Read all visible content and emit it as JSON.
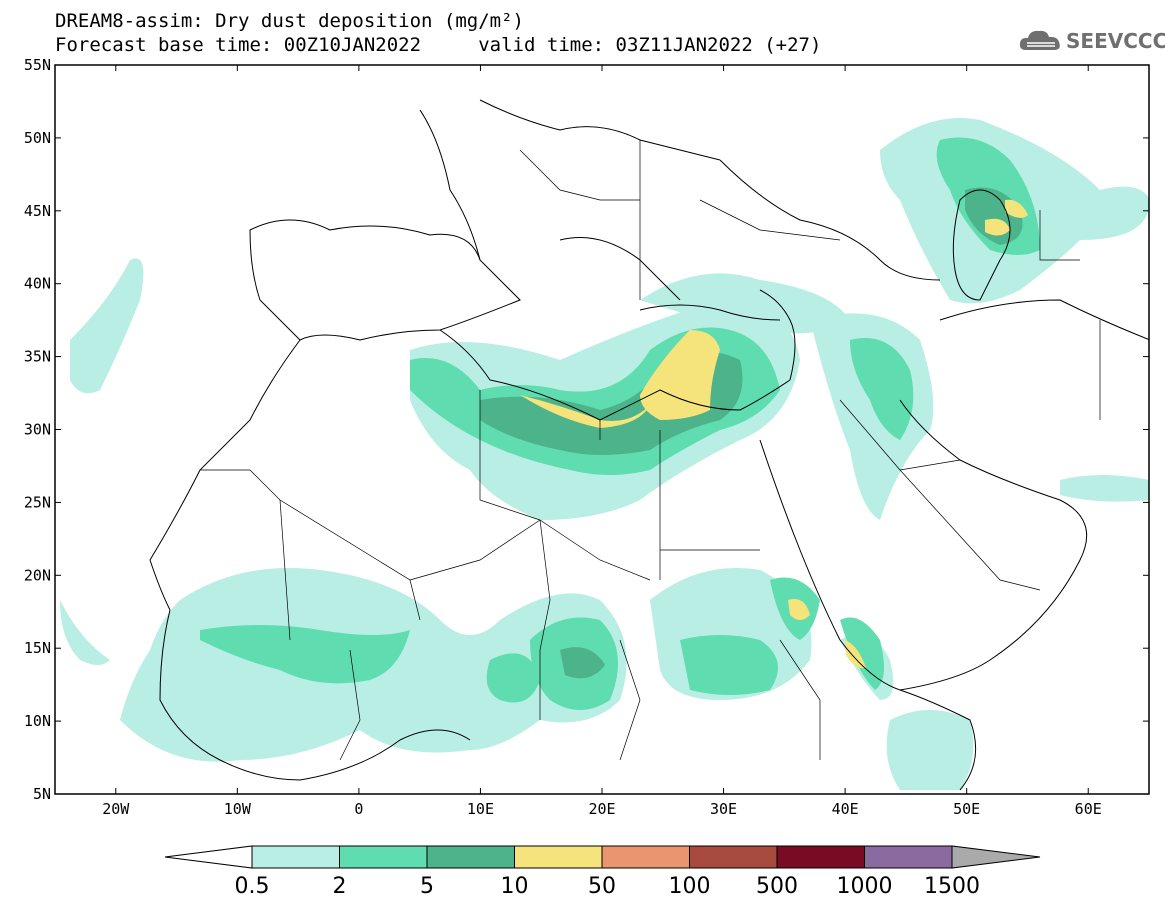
{
  "header": {
    "title_line1": "DREAM8-assim: Dry dust deposition (mg/m²)",
    "title_line2": "Forecast base time: 00Z10JAN2022     valid time: 03Z11JAN2022 (+27)"
  },
  "logo": {
    "text": "SEEVCCC",
    "icon": "cloud-icon"
  },
  "map": {
    "projection": "lat-lon",
    "lon_range": [
      -25,
      65
    ],
    "lat_range": [
      5,
      55
    ],
    "lat_ticks": [
      "55N",
      "50N",
      "45N",
      "40N",
      "35N",
      "30N",
      "25N",
      "20N",
      "15N",
      "10N",
      "5N"
    ],
    "lat_values": [
      55,
      50,
      45,
      40,
      35,
      30,
      25,
      20,
      15,
      10,
      5
    ],
    "lon_ticks": [
      "20W",
      "10W",
      "0",
      "10E",
      "20E",
      "30E",
      "40E",
      "50E",
      "60E"
    ],
    "lon_values": [
      -20,
      -10,
      0,
      10,
      20,
      30,
      40,
      50,
      60
    ]
  },
  "colorbar": {
    "labels": [
      "0.5",
      "2",
      "5",
      "10",
      "50",
      "100",
      "500",
      "1000",
      "1500"
    ],
    "colors": [
      "#b9eee4",
      "#5fdcb0",
      "#4cb38b",
      "#f5e47c",
      "#ea9470",
      "#a84a3e",
      "#7a0b25",
      "#8a6aa0"
    ],
    "under_color": "#ffffff",
    "over_color": "#aaaaaa"
  },
  "chart_data": {
    "type": "heatmap",
    "variable": "Dry dust deposition (mg/m²)",
    "levels": [
      0.5,
      2,
      5,
      10,
      50,
      100,
      500,
      1000,
      1500
    ],
    "regions": [
      {
        "lon": [
          26,
          33
        ],
        "lat": [
          31,
          35.5
        ],
        "level": "10-50"
      },
      {
        "lon": [
          12,
          22
        ],
        "lat": [
          29,
          32
        ],
        "level": "5-10"
      },
      {
        "lon": [
          5,
          35
        ],
        "lat": [
          26,
          33
        ],
        "level": "2-5"
      },
      {
        "lon": [
          47,
          55
        ],
        "lat": [
          42,
          49
        ],
        "level": "2-10"
      },
      {
        "lon": [
          -10,
          10
        ],
        "lat": [
          11,
          17
        ],
        "level": "2-5"
      },
      {
        "lon": [
          14,
          22
        ],
        "lat": [
          10,
          17
        ],
        "level": "2-5"
      },
      {
        "lon": [
          26,
          34
        ],
        "lat": [
          11,
          16
        ],
        "level": "2-5"
      },
      {
        "lon": [
          34,
          38
        ],
        "lat": [
          15,
          19
        ],
        "level": "5-10"
      },
      {
        "lon": [
          39,
          43
        ],
        "lat": [
          12,
          16
        ],
        "level": "5-10"
      }
    ]
  }
}
